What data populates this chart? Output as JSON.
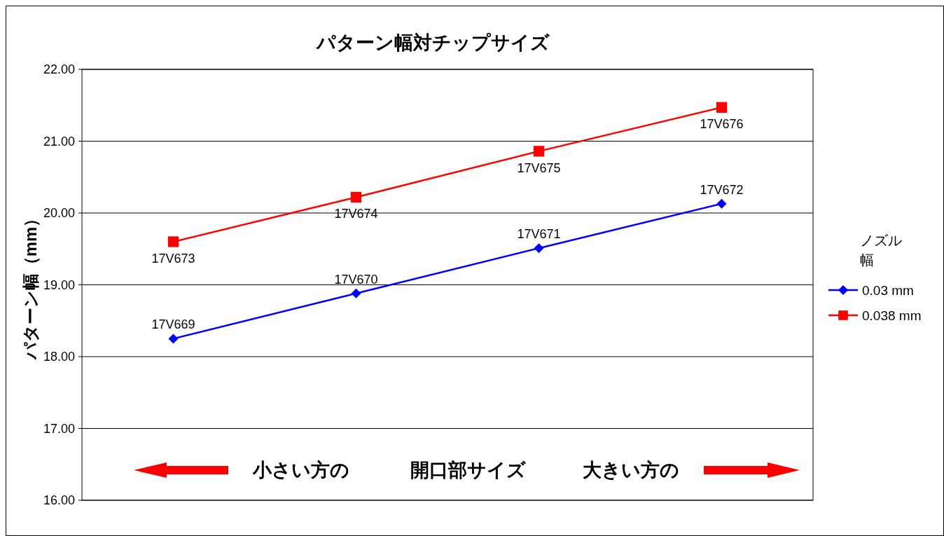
{
  "chart_data": {
    "type": "line",
    "title": "パターン幅対チップサイズ",
    "ylabel": "パターン幅（mm）",
    "legend_title": "ノズル幅",
    "categories": [
      null,
      null,
      null,
      null
    ],
    "ylim": [
      16,
      22
    ],
    "yticks": [
      {
        "value": 16,
        "label": "16.00"
      },
      {
        "value": 17,
        "label": "17.00"
      },
      {
        "value": 18,
        "label": "18.00"
      },
      {
        "value": 19,
        "label": "19.00"
      },
      {
        "value": 20,
        "label": "20.00"
      },
      {
        "value": 21,
        "label": "21.00"
      },
      {
        "value": 22,
        "label": "22.00"
      }
    ],
    "grid": "y",
    "legend": "right",
    "line_style": "solid",
    "series": [
      {
        "name": "0.03 mm",
        "color": "#0000ff",
        "marker": "diamond",
        "values": [
          18.25,
          18.88,
          19.51,
          20.13
        ]
      },
      {
        "name": "0.038 mm",
        "color": "#ff0000",
        "marker": "square",
        "values": [
          19.6,
          20.22,
          20.86,
          21.47
        ]
      }
    ],
    "annotations": [
      {
        "text": "17V669",
        "y": 18.25
      },
      {
        "text": "17V670",
        "y": 18.88
      },
      {
        "text": "17V671",
        "y": 19.51
      },
      {
        "text": "17V672",
        "y": 20.13
      },
      {
        "text": "17V673",
        "y": 19.6
      },
      {
        "text": "17V674",
        "y": 20.22
      },
      {
        "text": "17V675",
        "y": 20.86
      },
      {
        "text": "17V676",
        "y": 21.47
      },
      "小さい方の",
      "開口部サイズ",
      "大きい方の"
    ]
  }
}
